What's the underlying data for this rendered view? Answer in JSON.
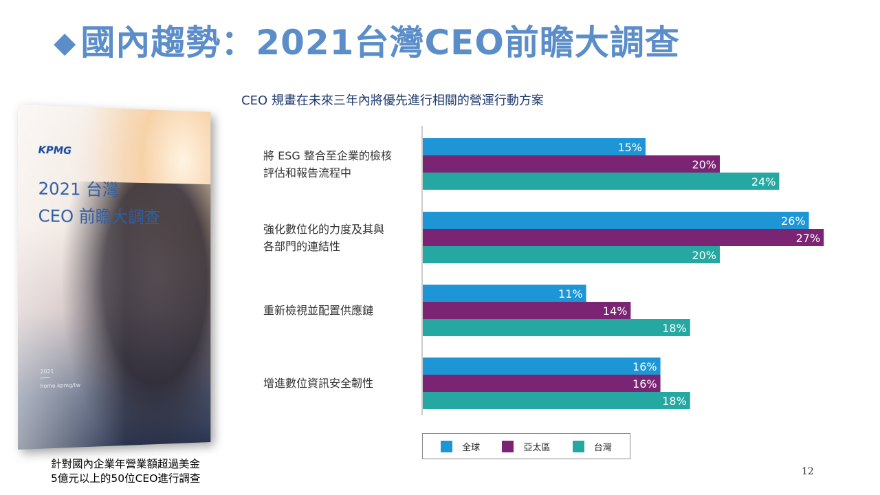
{
  "slide": {
    "title": "國內趨勢：2021台灣CEO前瞻大調查",
    "title_marker": "◆",
    "caption_line1": "針對國內企業年營業額超過美金",
    "caption_line2": "5億元以上的50位CEO進行調查",
    "page_number": "12"
  },
  "cover": {
    "logo": "KPMG",
    "title_line1": "2021 台灣",
    "title_line2": "CEO 前瞻大調查",
    "year": "2021",
    "url": "home.kpmg/tw"
  },
  "colors": {
    "title": "#5b8ec9",
    "global": "#1e96d6",
    "asia_pacific": "#7a2473",
    "taiwan": "#26a8a2"
  },
  "chart_data": {
    "type": "bar",
    "orientation": "horizontal",
    "title": "CEO 規畫在未來三年內將優先進行相關的營運行動方案",
    "categories": [
      [
        "將 ESG 整合至企業的檢核",
        "評估和報告流程中"
      ],
      [
        "強化數位化的力度及其與",
        "各部門的連結性"
      ],
      [
        "重新檢視並配置供應鏈"
      ],
      [
        "增進數位資訊安全韌性"
      ]
    ],
    "series": [
      {
        "name": "全球",
        "values": [
          15,
          26,
          11,
          16
        ],
        "color": "#1e96d6"
      },
      {
        "name": "亞太區",
        "values": [
          20,
          27,
          14,
          16
        ],
        "color": "#7a2473"
      },
      {
        "name": "台灣",
        "values": [
          24,
          20,
          18,
          18
        ],
        "color": "#26a8a2"
      }
    ],
    "value_suffix": "%",
    "xlim": [
      0,
      27
    ],
    "grid": false,
    "legend_position": "bottom"
  }
}
